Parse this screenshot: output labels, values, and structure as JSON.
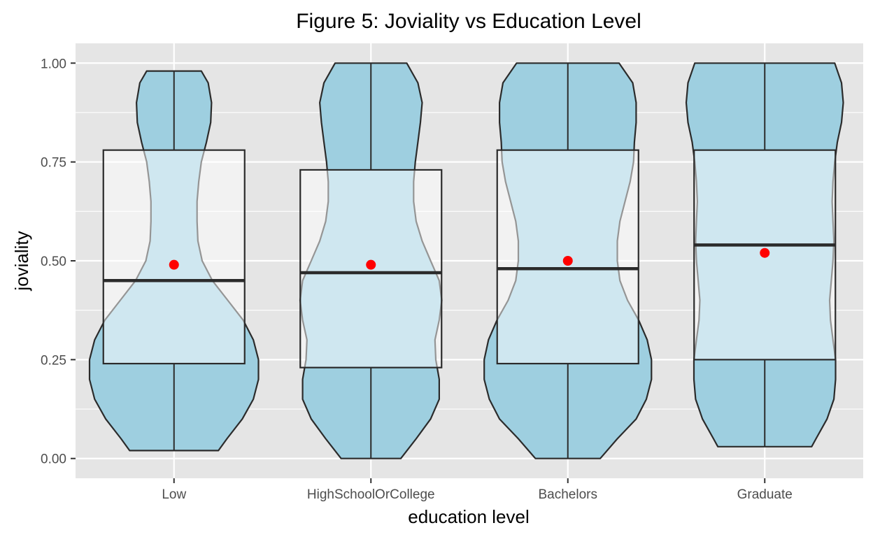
{
  "chart_data": {
    "type": "violin",
    "title": "Figure 5: Joviality vs Education Level",
    "xlabel": "education level",
    "ylabel": "joviality",
    "ylim": [
      -0.05,
      1.05
    ],
    "yticks": [
      0.0,
      0.25,
      0.5,
      0.75,
      1.0
    ],
    "ytick_labels": [
      "0.00",
      "0.25",
      "0.50",
      "0.75",
      "1.00"
    ],
    "grid": true,
    "categories": [
      "Low",
      "HighSchoolOrCollege",
      "Bachelors",
      "Graduate"
    ],
    "groups": [
      {
        "category": "Low",
        "min": 0.02,
        "max": 0.98,
        "box": {
          "q1": 0.24,
          "median": 0.45,
          "q3": 0.78,
          "whisker_low": 0.02,
          "whisker_high": 0.98
        },
        "mean": 0.49,
        "density": [
          [
            0.02,
            0.52
          ],
          [
            0.05,
            0.62
          ],
          [
            0.1,
            0.8
          ],
          [
            0.15,
            0.93
          ],
          [
            0.2,
            0.99
          ],
          [
            0.25,
            0.99
          ],
          [
            0.3,
            0.93
          ],
          [
            0.35,
            0.81
          ],
          [
            0.4,
            0.63
          ],
          [
            0.45,
            0.45
          ],
          [
            0.5,
            0.33
          ],
          [
            0.55,
            0.28
          ],
          [
            0.6,
            0.27
          ],
          [
            0.65,
            0.27
          ],
          [
            0.7,
            0.29
          ],
          [
            0.75,
            0.32
          ],
          [
            0.8,
            0.38
          ],
          [
            0.85,
            0.43
          ],
          [
            0.9,
            0.44
          ],
          [
            0.95,
            0.4
          ],
          [
            0.98,
            0.32
          ]
        ]
      },
      {
        "category": "HighSchoolOrCollege",
        "min": 0.0,
        "max": 1.0,
        "box": {
          "q1": 0.23,
          "median": 0.47,
          "q3": 0.73,
          "whisker_low": 0.0,
          "whisker_high": 1.0
        },
        "mean": 0.49,
        "density": [
          [
            0.0,
            0.35
          ],
          [
            0.05,
            0.53
          ],
          [
            0.1,
            0.7
          ],
          [
            0.15,
            0.8
          ],
          [
            0.2,
            0.8
          ],
          [
            0.25,
            0.76
          ],
          [
            0.3,
            0.75
          ],
          [
            0.35,
            0.8
          ],
          [
            0.4,
            0.83
          ],
          [
            0.45,
            0.8
          ],
          [
            0.5,
            0.7
          ],
          [
            0.55,
            0.6
          ],
          [
            0.6,
            0.53
          ],
          [
            0.65,
            0.5
          ],
          [
            0.7,
            0.5
          ],
          [
            0.75,
            0.52
          ],
          [
            0.8,
            0.55
          ],
          [
            0.85,
            0.58
          ],
          [
            0.9,
            0.6
          ],
          [
            0.95,
            0.55
          ],
          [
            1.0,
            0.42
          ]
        ]
      },
      {
        "category": "Bachelors",
        "min": 0.0,
        "max": 1.0,
        "box": {
          "q1": 0.24,
          "median": 0.48,
          "q3": 0.78,
          "whisker_low": 0.0,
          "whisker_high": 1.0
        },
        "mean": 0.5,
        "density": [
          [
            0.0,
            0.38
          ],
          [
            0.05,
            0.58
          ],
          [
            0.1,
            0.8
          ],
          [
            0.15,
            0.92
          ],
          [
            0.2,
            0.98
          ],
          [
            0.25,
            0.98
          ],
          [
            0.3,
            0.93
          ],
          [
            0.35,
            0.83
          ],
          [
            0.4,
            0.7
          ],
          [
            0.45,
            0.61
          ],
          [
            0.5,
            0.58
          ],
          [
            0.55,
            0.58
          ],
          [
            0.6,
            0.61
          ],
          [
            0.65,
            0.67
          ],
          [
            0.7,
            0.73
          ],
          [
            0.75,
            0.77
          ],
          [
            0.8,
            0.78
          ],
          [
            0.85,
            0.8
          ],
          [
            0.9,
            0.8
          ],
          [
            0.95,
            0.76
          ],
          [
            1.0,
            0.6
          ]
        ]
      },
      {
        "category": "Graduate",
        "min": 0.03,
        "max": 1.0,
        "box": {
          "q1": 0.25,
          "median": 0.54,
          "q3": 0.78,
          "whisker_low": 0.03,
          "whisker_high": 1.0
        },
        "mean": 0.52,
        "density": [
          [
            0.03,
            0.55
          ],
          [
            0.05,
            0.6
          ],
          [
            0.1,
            0.73
          ],
          [
            0.15,
            0.81
          ],
          [
            0.2,
            0.83
          ],
          [
            0.25,
            0.83
          ],
          [
            0.3,
            0.8
          ],
          [
            0.35,
            0.77
          ],
          [
            0.4,
            0.76
          ],
          [
            0.45,
            0.78
          ],
          [
            0.5,
            0.8
          ],
          [
            0.55,
            0.81
          ],
          [
            0.6,
            0.8
          ],
          [
            0.65,
            0.79
          ],
          [
            0.7,
            0.8
          ],
          [
            0.75,
            0.82
          ],
          [
            0.8,
            0.85
          ],
          [
            0.85,
            0.9
          ],
          [
            0.9,
            0.92
          ],
          [
            0.95,
            0.9
          ],
          [
            1.0,
            0.82
          ]
        ]
      }
    ],
    "colors": {
      "violin_fill": "#9ecfe0",
      "violin_stroke": "#2b2b2b",
      "box_fill": "#ffffff",
      "box_fill_opacity": 0.5,
      "mean_point": "#ff0000",
      "panel_background": "#e5e5e5",
      "grid": "#ffffff"
    }
  }
}
